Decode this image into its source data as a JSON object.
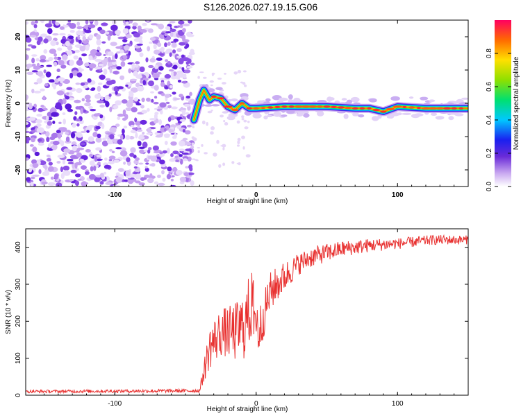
{
  "title": "S126.2026.027.19.15.G06",
  "colors": {
    "snr_line": "#e8302f",
    "ridge": "#e8302f"
  },
  "chart_data": [
    {
      "type": "heatmap",
      "title": "S126.2026.027.19.15.G06",
      "xlabel": "Height of straight line (km)",
      "ylabel": "Frequency (Hz)",
      "xlim": [
        -163,
        150
      ],
      "ylim": [
        -25,
        25
      ],
      "x_ticks": [
        -100,
        0,
        100
      ],
      "y_ticks": [
        -20,
        -10,
        0,
        10,
        20
      ],
      "colorbar": {
        "label": "Normalized spectral amplitude",
        "range": [
          0,
          1
        ],
        "ticks": [
          "0.0",
          "0.2",
          "0.4",
          "0.6",
          "0.8"
        ]
      },
      "noise_region_x": [
        -163,
        -45
      ],
      "ridge": [
        {
          "x": -44,
          "y": -5
        },
        {
          "x": -40,
          "y": 1
        },
        {
          "x": -37,
          "y": 4
        },
        {
          "x": -33,
          "y": 1
        },
        {
          "x": -30,
          "y": 2
        },
        {
          "x": -25,
          "y": 1.5
        },
        {
          "x": -20,
          "y": -1
        },
        {
          "x": -15,
          "y": -2
        },
        {
          "x": -10,
          "y": 0
        },
        {
          "x": -5,
          "y": -1.5
        },
        {
          "x": 0,
          "y": -1.5
        },
        {
          "x": 20,
          "y": -1
        },
        {
          "x": 50,
          "y": -1
        },
        {
          "x": 70,
          "y": -1.5
        },
        {
          "x": 80,
          "y": -1.5
        },
        {
          "x": 90,
          "y": -2.5
        },
        {
          "x": 100,
          "y": -1
        },
        {
          "x": 120,
          "y": -1.5
        },
        {
          "x": 150,
          "y": -1.5
        }
      ]
    },
    {
      "type": "line",
      "xlabel": "Height of straight line (km)",
      "ylabel": "SNR (10 * v/v)",
      "xlim": [
        -163,
        150
      ],
      "ylim": [
        0,
        450
      ],
      "x_ticks": [
        -100,
        0,
        100
      ],
      "y_ticks": [
        0,
        100,
        200,
        300,
        400
      ],
      "series": [
        {
          "name": "SNR",
          "trend": [
            {
              "x": -163,
              "y": 10
            },
            {
              "x": -40,
              "y": 12
            },
            {
              "x": -33,
              "y": 130
            },
            {
              "x": -25,
              "y": 170
            },
            {
              "x": -15,
              "y": 170
            },
            {
              "x": -8,
              "y": 190
            },
            {
              "x": -3,
              "y": 250
            },
            {
              "x": 2,
              "y": 170
            },
            {
              "x": 10,
              "y": 280
            },
            {
              "x": 20,
              "y": 320
            },
            {
              "x": 30,
              "y": 355
            },
            {
              "x": 40,
              "y": 375
            },
            {
              "x": 60,
              "y": 395
            },
            {
              "x": 80,
              "y": 405
            },
            {
              "x": 100,
              "y": 410
            },
            {
              "x": 125,
              "y": 420
            },
            {
              "x": 150,
              "y": 420
            }
          ],
          "spread": [
            {
              "x": -163,
              "y": 4
            },
            {
              "x": -40,
              "y": 5
            },
            {
              "x": -33,
              "y": 60
            },
            {
              "x": -20,
              "y": 70
            },
            {
              "x": -5,
              "y": 100
            },
            {
              "x": 5,
              "y": 60
            },
            {
              "x": 30,
              "y": 30
            },
            {
              "x": 60,
              "y": 22
            },
            {
              "x": 100,
              "y": 15
            },
            {
              "x": 150,
              "y": 12
            }
          ]
        }
      ]
    }
  ]
}
